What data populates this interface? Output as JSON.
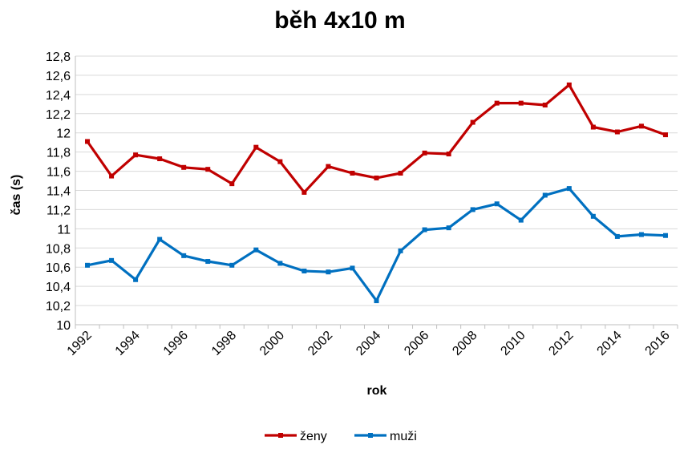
{
  "chart_data": {
    "type": "line",
    "title": "běh 4x10 m",
    "xlabel": "rok",
    "ylabel": "čas (s)",
    "ylim": [
      10,
      12.8
    ],
    "y_ticks": [
      "10",
      "10,2",
      "10,4",
      "10,6",
      "10,8",
      "11",
      "11,2",
      "11,4",
      "11,6",
      "11,8",
      "12",
      "12,2",
      "12,4",
      "12,6",
      "12,8"
    ],
    "x": [
      1992,
      1993,
      1994,
      1995,
      1996,
      1997,
      1998,
      1999,
      2000,
      2001,
      2002,
      2003,
      2004,
      2005,
      2006,
      2007,
      2008,
      2009,
      2010,
      2011,
      2012,
      2013,
      2014,
      2015,
      2016
    ],
    "x_tick_labels": [
      "1992",
      "1994",
      "1996",
      "1998",
      "2000",
      "2002",
      "2004",
      "2006",
      "2008",
      "2010",
      "2012",
      "2014",
      "2016"
    ],
    "grid": true,
    "legend_position": "bottom",
    "series": [
      {
        "name": "ženy",
        "color": "#c00000",
        "values": [
          11.91,
          11.55,
          11.77,
          11.73,
          11.64,
          11.62,
          11.47,
          11.85,
          11.7,
          11.38,
          11.65,
          11.58,
          11.53,
          11.58,
          11.79,
          11.78,
          12.11,
          12.31,
          12.31,
          12.29,
          12.5,
          12.06,
          12.01,
          12.07,
          11.98
        ]
      },
      {
        "name": "muži",
        "color": "#0070c0",
        "values": [
          10.62,
          10.67,
          10.47,
          10.89,
          10.72,
          10.66,
          10.62,
          10.78,
          10.64,
          10.56,
          10.55,
          10.59,
          10.25,
          10.77,
          10.99,
          11.01,
          11.2,
          11.26,
          11.09,
          11.35,
          11.42,
          11.13,
          10.92,
          10.94,
          10.93
        ]
      }
    ]
  }
}
